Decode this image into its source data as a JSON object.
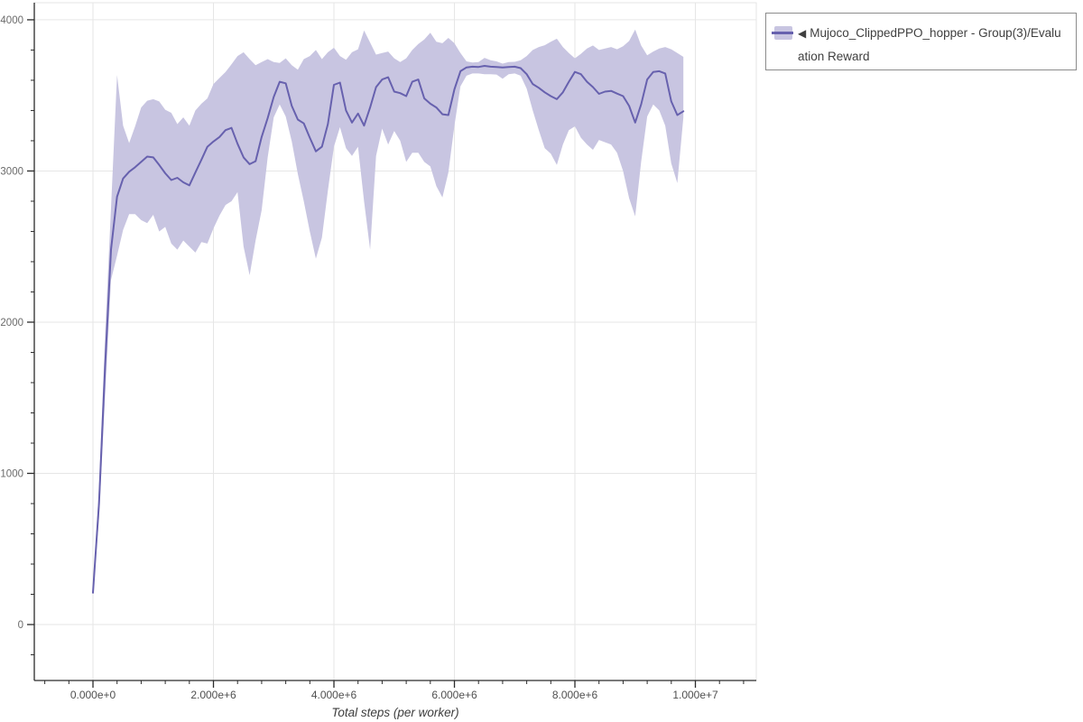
{
  "legend": {
    "marker": "◀",
    "label": "Mujoco_ClippedPPO_hopper - Group(3)/Evaluation Reward"
  },
  "colors": {
    "line": "#6761ae",
    "band": "#c8c5e1",
    "grid": "#e6e6e6",
    "plot_border": "#e6e6e6",
    "axis": "#2b2b2b",
    "y_tick_label": "#6b6b6b",
    "x_tick_label": "#4f4f4f",
    "axis_title": "#3d3d3d",
    "legend_border": "#8c8c8c",
    "legend_text": "#3f3f3f",
    "background": "#ffffff"
  },
  "axes": {
    "x_ticks": [
      {
        "v": 0,
        "label": "0.000e+0"
      },
      {
        "v": 2,
        "label": "2.000e+6"
      },
      {
        "v": 4,
        "label": "4.000e+6"
      },
      {
        "v": 6,
        "label": "6.000e+6"
      },
      {
        "v": 8,
        "label": "8.000e+6"
      },
      {
        "v": 10,
        "label": "1.000e+7"
      }
    ],
    "y_ticks": [
      {
        "v": 0,
        "label": "0"
      },
      {
        "v": 1000,
        "label": "1000"
      },
      {
        "v": 2000,
        "label": "2000"
      },
      {
        "v": 3000,
        "label": "3000"
      },
      {
        "v": 4000,
        "label": "4000"
      }
    ],
    "x_minor_step_e6": 0.4,
    "y_minor_step": 200
  },
  "chart_data": {
    "type": "line",
    "title": "",
    "xlabel": "Total steps (per worker)",
    "ylabel": "",
    "x_unit": "steps (values in millions)",
    "grid": true,
    "legend_position": "top-right-outside",
    "xlim_e6": [
      -0.974,
      11.011
    ],
    "ylim": [
      -370,
      4113
    ],
    "x": [
      0.0,
      0.1,
      0.2,
      0.3,
      0.4,
      0.5,
      0.6,
      0.7,
      0.8,
      0.9,
      1.0,
      1.1,
      1.2,
      1.3,
      1.4,
      1.5,
      1.6,
      1.7,
      1.8,
      1.9,
      2.0,
      2.1,
      2.2,
      2.3,
      2.4,
      2.5,
      2.6,
      2.7,
      2.8,
      2.9,
      3.0,
      3.1,
      3.2,
      3.3,
      3.4,
      3.5,
      3.6,
      3.7,
      3.8,
      3.9,
      4.0,
      4.1,
      4.2,
      4.3,
      4.4,
      4.5,
      4.6,
      4.7,
      4.8,
      4.9,
      5.0,
      5.1,
      5.2,
      5.3,
      5.4,
      5.5,
      5.6,
      5.7,
      5.8,
      5.9,
      6.0,
      6.1,
      6.2,
      6.3,
      6.4,
      6.5,
      6.6,
      6.7,
      6.8,
      6.9,
      7.0,
      7.1,
      7.2,
      7.3,
      7.4,
      7.5,
      7.6,
      7.7,
      7.8,
      7.9,
      8.0,
      8.1,
      8.2,
      8.3,
      8.4,
      8.5,
      8.6,
      8.7,
      8.8,
      8.9,
      9.0,
      9.1,
      9.2,
      9.3,
      9.4,
      9.5,
      9.6,
      9.7,
      9.8
    ],
    "series": [
      {
        "name": "Mujoco_ClippedPPO_hopper - Group(3)/Evaluation Reward (mean)",
        "values": [
          210,
          800,
          1700,
          2480,
          2830,
          2950,
          2995,
          3025,
          3060,
          3095,
          3090,
          3040,
          2985,
          2940,
          2955,
          2925,
          2905,
          2990,
          3075,
          3160,
          3195,
          3225,
          3270,
          3285,
          3180,
          3090,
          3045,
          3065,
          3225,
          3350,
          3490,
          3590,
          3580,
          3430,
          3340,
          3315,
          3220,
          3130,
          3160,
          3310,
          3570,
          3585,
          3400,
          3320,
          3380,
          3300,
          3420,
          3555,
          3605,
          3620,
          3525,
          3515,
          3495,
          3590,
          3605,
          3480,
          3445,
          3420,
          3375,
          3370,
          3540,
          3660,
          3685,
          3690,
          3688,
          3695,
          3690,
          3688,
          3685,
          3688,
          3690,
          3680,
          3640,
          3575,
          3550,
          3520,
          3495,
          3475,
          3520,
          3590,
          3655,
          3640,
          3590,
          3555,
          3510,
          3525,
          3530,
          3512,
          3495,
          3430,
          3320,
          3440,
          3605,
          3655,
          3660,
          3645,
          3460,
          3370,
          3395
        ]
      },
      {
        "name": "band_lower",
        "values": [
          200,
          700,
          1500,
          2280,
          2440,
          2610,
          2715,
          2715,
          2675,
          2655,
          2710,
          2600,
          2630,
          2520,
          2480,
          2540,
          2500,
          2460,
          2530,
          2520,
          2620,
          2705,
          2775,
          2800,
          2860,
          2500,
          2310,
          2540,
          2740,
          3090,
          3355,
          3440,
          3360,
          3195,
          2980,
          2800,
          2600,
          2420,
          2560,
          2870,
          3160,
          3290,
          3150,
          3100,
          3160,
          2800,
          2480,
          3100,
          3280,
          3175,
          3265,
          3200,
          3060,
          3120,
          3120,
          3060,
          3030,
          2900,
          2825,
          2990,
          3300,
          3560,
          3630,
          3645,
          3645,
          3640,
          3640,
          3638,
          3610,
          3640,
          3645,
          3630,
          3545,
          3400,
          3270,
          3150,
          3115,
          3040,
          3175,
          3270,
          3295,
          3220,
          3175,
          3140,
          3205,
          3190,
          3175,
          3120,
          3000,
          2820,
          2700,
          3060,
          3360,
          3440,
          3400,
          3300,
          3050,
          2920,
          3355
        ]
      },
      {
        "name": "band_upper",
        "values": [
          225,
          905,
          1905,
          2755,
          3635,
          3300,
          3185,
          3295,
          3420,
          3465,
          3475,
          3460,
          3405,
          3385,
          3310,
          3355,
          3300,
          3400,
          3445,
          3480,
          3575,
          3615,
          3655,
          3705,
          3760,
          3785,
          3740,
          3700,
          3720,
          3740,
          3720,
          3715,
          3745,
          3700,
          3670,
          3740,
          3760,
          3800,
          3740,
          3785,
          3815,
          3760,
          3735,
          3785,
          3805,
          3930,
          3850,
          3770,
          3780,
          3790,
          3745,
          3720,
          3745,
          3800,
          3840,
          3870,
          3915,
          3855,
          3845,
          3880,
          3845,
          3780,
          3725,
          3718,
          3720,
          3748,
          3732,
          3725,
          3710,
          3720,
          3722,
          3732,
          3760,
          3800,
          3820,
          3832,
          3855,
          3875,
          3820,
          3780,
          3745,
          3775,
          3810,
          3830,
          3800,
          3810,
          3820,
          3805,
          3825,
          3860,
          3935,
          3830,
          3765,
          3790,
          3810,
          3820,
          3805,
          3780,
          3755
        ]
      }
    ],
    "x_tick_labels": [
      "0.000e+0",
      "2.000e+6",
      "4.000e+6",
      "6.000e+6",
      "8.000e+6",
      "1.000e+7"
    ],
    "y_tick_labels": [
      "0",
      "1000",
      "2000",
      "3000",
      "4000"
    ]
  }
}
